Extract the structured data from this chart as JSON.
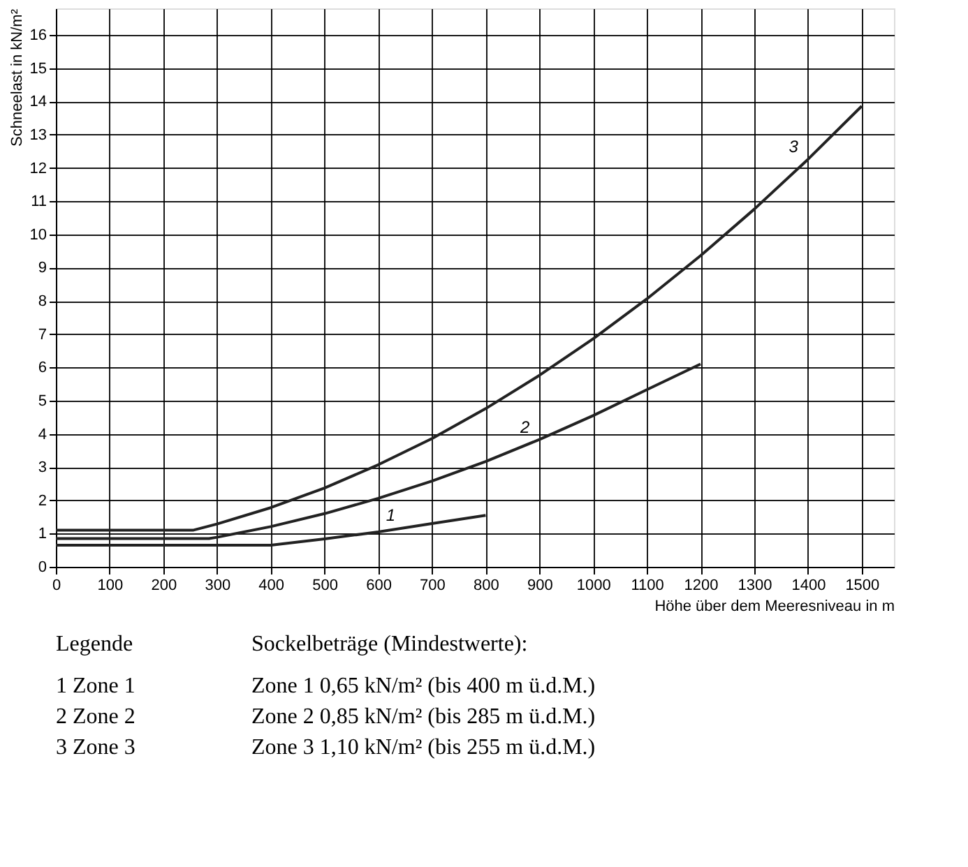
{
  "chart_data": {
    "type": "line",
    "xlabel": "Höhe über dem Meeresniveau in m",
    "ylabel": "Schneelast in kN/m²",
    "xlim": [
      0,
      1560
    ],
    "ylim": [
      0,
      16.8
    ],
    "xticks": [
      0,
      100,
      200,
      300,
      400,
      500,
      600,
      700,
      800,
      900,
      1000,
      1100,
      1200,
      1300,
      1400,
      1500
    ],
    "yticks": [
      0,
      1,
      2,
      3,
      4,
      5,
      6,
      7,
      8,
      9,
      10,
      11,
      12,
      13,
      14,
      15,
      16
    ],
    "grid": true,
    "marker": "none",
    "line_style": "solid",
    "series": [
      {
        "color": "#222222",
        "x": [
          0,
          400,
          500,
          600,
          700,
          800
        ],
        "values": [
          0.65,
          0.65,
          0.84,
          1.05,
          1.3,
          1.55
        ]
      },
      {
        "color": "#222222",
        "x": [
          0,
          285,
          300,
          400,
          500,
          600,
          700,
          800,
          900,
          1000,
          1100,
          1200
        ],
        "values": [
          0.85,
          0.85,
          0.89,
          1.21,
          1.6,
          2.06,
          2.58,
          3.17,
          3.83,
          4.55,
          5.33,
          6.1
        ]
      },
      {
        "color": "#222222",
        "x": [
          0,
          255,
          300,
          400,
          500,
          600,
          700,
          800,
          900,
          1000,
          1100,
          1200,
          1300,
          1400,
          1500
        ],
        "values": [
          1.1,
          1.1,
          1.29,
          1.78,
          2.37,
          3.07,
          3.86,
          4.76,
          5.76,
          6.86,
          8.06,
          9.36,
          10.76,
          12.26,
          13.86
        ]
      }
    ],
    "annotations": [
      {
        "text": "1",
        "x": 650,
        "y": 1.17
      },
      {
        "text": "2",
        "x": 900,
        "y": 3.83
      },
      {
        "text": "3",
        "x": 1400,
        "y": 12.26
      },
      "Legende",
      "Sockelbeträge (Mindestwerte):",
      "1  Zone 1",
      "Zone 1  0,65 kN/m² (bis 400 m ü.d.M.)",
      "2  Zone 2",
      "Zone 2  0,85 kN/m² (bis 285 m ü.d.M.)",
      "3  Zone 3",
      "Zone 3  1,10 kN/m² (bis 255 m ü.d.M.)"
    ]
  }
}
